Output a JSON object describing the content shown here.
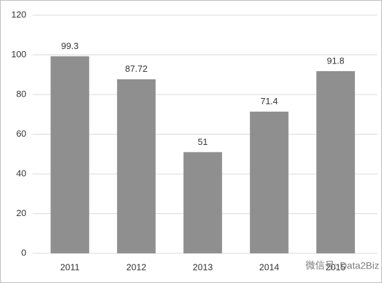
{
  "chart_data": {
    "type": "bar",
    "categories": [
      "2011",
      "2012",
      "2013",
      "2014",
      "2015"
    ],
    "values": [
      99.3,
      87.72,
      51,
      71.4,
      91.8
    ],
    "color": "#8f8f8f",
    "ylim": [
      0,
      120
    ],
    "yticks": [
      0,
      20,
      40,
      60,
      80,
      100,
      120
    ],
    "grid": true,
    "data_labels": true,
    "watermark": "微信号: Data2Biz"
  }
}
